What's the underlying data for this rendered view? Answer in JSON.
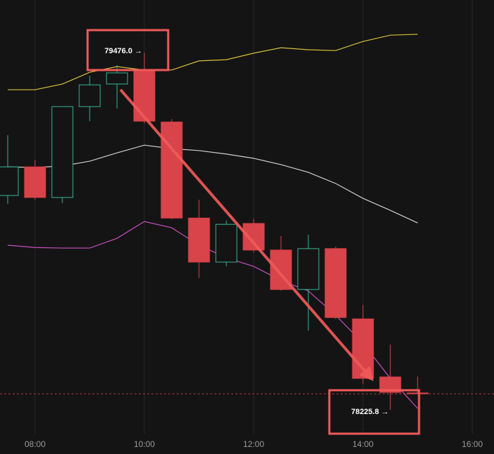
{
  "chart_data": {
    "type": "candlestick",
    "categories": [
      "07:30",
      "08:00",
      "08:30",
      "09:00",
      "09:30",
      "10:00",
      "10:30",
      "11:00",
      "11:30",
      "12:00",
      "12:30",
      "13:00",
      "13:30",
      "14:00",
      "14:30",
      "15:00"
    ],
    "open": [
      78976,
      79076,
      78969,
      79287,
      79366,
      79415,
      79233,
      78897,
      78743,
      78878,
      78785,
      78647,
      78790,
      78544,
      78341,
      78285
    ],
    "high": [
      79187,
      79101,
      79287,
      79395,
      79432,
      79476,
      79243,
      78961,
      78888,
      78895,
      78834,
      78839,
      78797,
      78593,
      78454,
      78343
    ],
    "low": [
      78947,
      78961,
      78949,
      79236,
      79280,
      79228,
      78893,
      78687,
      78728,
      78777,
      78643,
      78503,
      78544,
      78317,
      78225.8,
      78282
    ],
    "close": [
      79076,
      78969,
      79287,
      79363,
      79405,
      79236,
      78897,
      78743,
      78875,
      78785,
      78647,
      78790,
      78549,
      78336,
      78287,
      78282
    ],
    "up_color": "#36b594",
    "down_color": "#d9434a",
    "lines": [
      {
        "color": "#d6c03a",
        "values": [
          79346,
          79346,
          79366,
          79407,
          79427,
          79415,
          79415,
          79447,
          79451,
          79474,
          79493,
          79486,
          79483,
          79515,
          79537,
          79540
        ]
      },
      {
        "color": "#cfcfcf",
        "values": [
          79076,
          79074,
          79079,
          79096,
          79125,
          79152,
          79140,
          79133,
          79121,
          79106,
          79084,
          79057,
          79018,
          78966,
          78924,
          78880
        ]
      },
      {
        "color": "#c64fbd",
        "values": [
          78802,
          78794,
          78792,
          78792,
          78826,
          78885,
          78863,
          78802,
          78758,
          78728,
          78679,
          78642,
          78557,
          78459,
          78336,
          78231
        ]
      }
    ],
    "annotations": [
      "79476.0 →",
      "78225.8 →"
    ],
    "ylim": [
      78140,
      79660
    ],
    "xticks": [
      "08:00",
      "10:00",
      "12:00",
      "14:00",
      "16:00"
    ],
    "grid": true
  }
}
